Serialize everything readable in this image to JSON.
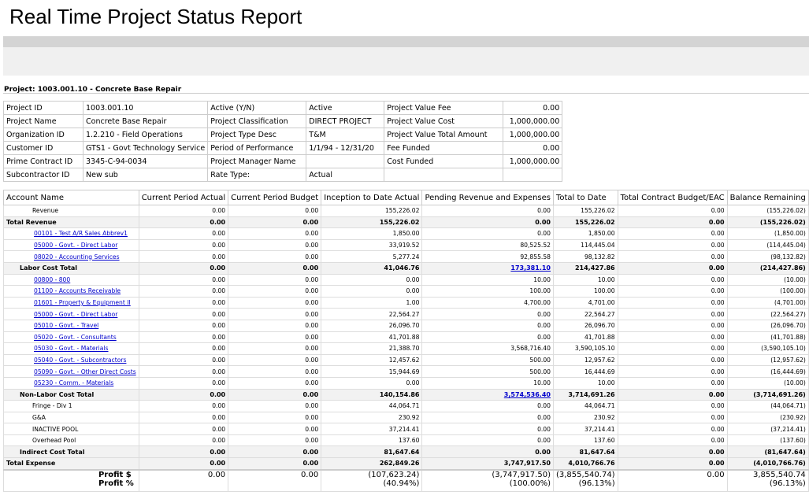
{
  "header": {
    "title": "Real Time Project Status Report"
  },
  "project": {
    "heading": "Project: 1003.001.10 - Concrete Base Repair",
    "info": [
      [
        "Project ID",
        "1003.001.10",
        "Active (Y/N)",
        "Active",
        "Project Value Fee",
        "0.00"
      ],
      [
        "Project Name",
        "Concrete Base Repair",
        "Project Classification",
        "DIRECT PROJECT",
        "Project Value Cost",
        "1,000,000.00"
      ],
      [
        "Organization ID",
        "1.2.210 - Field Operations",
        "Project Type Desc",
        "T&M",
        "Project Value Total Amount",
        "1,000,000.00"
      ],
      [
        "Customer ID",
        "GTS1 - Govt Technology Service",
        "Period of Performance",
        "1/1/94 - 12/31/20",
        "Fee Funded",
        "0.00"
      ],
      [
        "Prime Contract ID",
        "3345-C-94-0034",
        "Project Manager Name",
        "",
        "Cost Funded",
        "1,000,000.00"
      ],
      [
        "Subcontractor ID",
        "New sub",
        "Rate Type:",
        "Actual"
      ]
    ]
  },
  "table": {
    "columns": [
      "Account Name",
      "Current Period Actual",
      "Current Period Budget",
      "Inception to Date Actual",
      "Pending Revenue and Expenses",
      "Total to Date",
      "Total Contract Budget/EAC",
      "Balance Remaining"
    ],
    "rows": [
      [
        "Revenue",
        "0.00",
        "0.00",
        "155,226.02",
        "0.00",
        "155,226.02",
        "0.00",
        "(155,226.02)"
      ],
      [
        "Total Revenue",
        "0.00",
        "0.00",
        "155,226.02",
        "0.00",
        "155,226.02",
        "0.00",
        "(155,226.02)"
      ],
      [
        "00101 - Test A/R Sales Abbrev1",
        "0.00",
        "0.00",
        "1,850.00",
        "0.00",
        "1,850.00",
        "0.00",
        "(1,850.00)"
      ],
      [
        "05000 - Govt. - Direct Labor",
        "0.00",
        "0.00",
        "33,919.52",
        "80,525.52",
        "114,445.04",
        "0.00",
        "(114,445.04)"
      ],
      [
        "08020 - Accounting Services",
        "0.00",
        "0.00",
        "5,277.24",
        "92,855.58",
        "98,132.82",
        "0.00",
        "(98,132.82)"
      ],
      [
        "Labor Cost Total",
        "0.00",
        "0.00",
        "41,046.76",
        "173,381.10",
        "214,427.86",
        "0.00",
        "(214,427.86)"
      ],
      [
        "00800 - 800",
        "0.00",
        "0.00",
        "0.00",
        "10.00",
        "10.00",
        "0.00",
        "(10.00)"
      ],
      [
        "01100 - Accounts Receivable",
        "0.00",
        "0.00",
        "0.00",
        "100.00",
        "100.00",
        "0.00",
        "(100.00)"
      ],
      [
        "01601 - Property & Equipment II",
        "0.00",
        "0.00",
        "1.00",
        "4,700.00",
        "4,701.00",
        "0.00",
        "(4,701.00)"
      ],
      [
        "05000 - Govt. - Direct Labor",
        "0.00",
        "0.00",
        "22,564.27",
        "0.00",
        "22,564.27",
        "0.00",
        "(22,564.27)"
      ],
      [
        "05010 - Govt. - Travel",
        "0.00",
        "0.00",
        "26,096.70",
        "0.00",
        "26,096.70",
        "0.00",
        "(26,096.70)"
      ],
      [
        "05020 - Govt. - Consultants",
        "0.00",
        "0.00",
        "41,701.88",
        "0.00",
        "41,701.88",
        "0.00",
        "(41,701.88)"
      ],
      [
        "05030 - Govt. - Materials",
        "0.00",
        "0.00",
        "21,388.70",
        "3,568,716.40",
        "3,590,105.10",
        "0.00",
        "(3,590,105.10)"
      ],
      [
        "05040 - Govt. - Subcontractors",
        "0.00",
        "0.00",
        "12,457.62",
        "500.00",
        "12,957.62",
        "0.00",
        "(12,957.62)"
      ],
      [
        "05090 - Govt. - Other Direct Costs",
        "0.00",
        "0.00",
        "15,944.69",
        "500.00",
        "16,444.69",
        "0.00",
        "(16,444.69)"
      ],
      [
        "05230 - Comm. - Materials",
        "0.00",
        "0.00",
        "0.00",
        "10.00",
        "10.00",
        "0.00",
        "(10.00)"
      ],
      [
        "Non-Labor Cost Total",
        "0.00",
        "0.00",
        "140,154.86",
        "3,574,536.40",
        "3,714,691.26",
        "0.00",
        "(3,714,691.26)"
      ],
      [
        "Fringe - Div 1",
        "0.00",
        "0.00",
        "44,064.71",
        "0.00",
        "44,064.71",
        "0.00",
        "(44,064.71)"
      ],
      [
        "G&A",
        "0.00",
        "0.00",
        "230.92",
        "0.00",
        "230.92",
        "0.00",
        "(230.92)"
      ],
      [
        "INACTIVE POOL",
        "0.00",
        "0.00",
        "37,214.41",
        "0.00",
        "37,214.41",
        "0.00",
        "(37,214.41)"
      ],
      [
        "Overhead Pool",
        "0.00",
        "0.00",
        "137.60",
        "0.00",
        "137.60",
        "0.00",
        "(137.60)"
      ],
      [
        "Indirect Cost Total",
        "0.00",
        "0.00",
        "81,647.64",
        "0.00",
        "81,647.64",
        "0.00",
        "(81,647.64)"
      ],
      [
        "Total Expense",
        "0.00",
        "0.00",
        "262,849.26",
        "3,747,917.50",
        "4,010,766.76",
        "0.00",
        "(4,010,766.76)"
      ]
    ],
    "profit": {
      "labels": [
        "Profit $",
        "Profit %"
      ],
      "cells": [
        [
          "0.00"
        ],
        [
          "0.00"
        ],
        [
          "(107,623.24)",
          "(40.94%)"
        ],
        [
          "(3,747,917.50)",
          "(100.00%)"
        ],
        [
          "(3,855,540.74)",
          "(96.13%)"
        ],
        [
          "0.00"
        ],
        [
          "3,855,540.74",
          "(96.13%)"
        ]
      ]
    }
  }
}
